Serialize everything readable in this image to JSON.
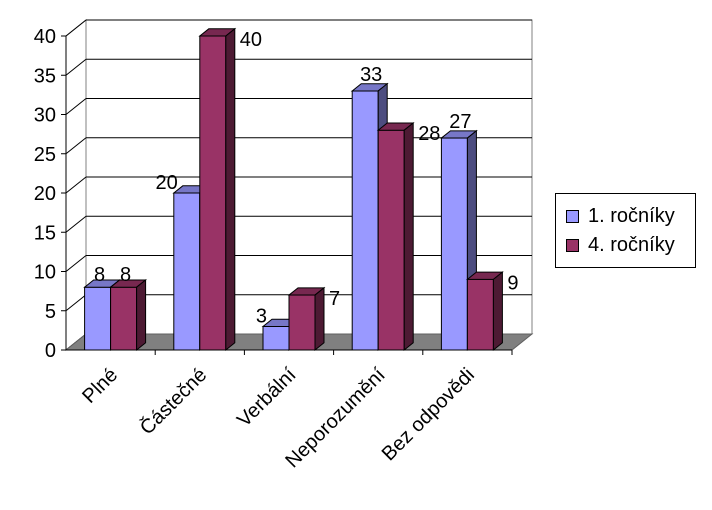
{
  "chart_data": {
    "type": "bar",
    "title": "",
    "xlabel": "",
    "ylabel": "",
    "categories": [
      "Plné",
      "Částečné",
      "Verbální",
      "Neporozumění",
      "Bez odpovědi"
    ],
    "series": [
      {
        "name": "1. ročníky",
        "values": [
          8,
          20,
          3,
          33,
          27
        ],
        "color": "#9999ff"
      },
      {
        "name": "4. ročníky",
        "values": [
          8,
          40,
          7,
          28,
          9
        ],
        "color": "#993366"
      }
    ],
    "ylim": [
      0,
      40
    ],
    "yticks": [
      0,
      5,
      10,
      15,
      20,
      25,
      30,
      35,
      40
    ],
    "grid": true,
    "legend_position": "right",
    "style": "3d-clustered-column",
    "floor_color": "#808080"
  }
}
